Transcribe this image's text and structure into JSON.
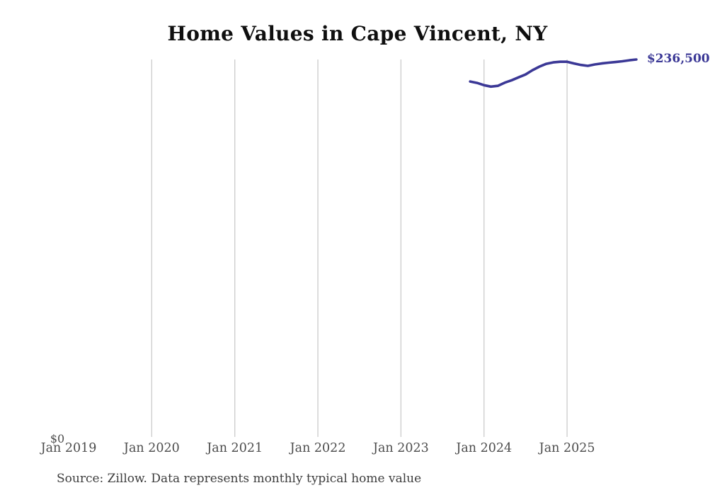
{
  "title": "Home Values in Cape Vincent, NY",
  "source": {
    "text": "Source: Zillow. Data represents monthly typical home value"
  },
  "y_axis": {
    "zero_label": "$0"
  },
  "end_label": {
    "text": "$236,500"
  },
  "colors": {
    "line": "#3b3896",
    "end_label": "#3b3896",
    "gridline": "#cbcbcb",
    "axis_label": "#4c4c4c",
    "title": "#0f0f0f",
    "source": "#3d3d3d",
    "background": "#ffffff"
  },
  "chart_data": {
    "type": "line",
    "title": "Home Values in Cape Vincent, NY",
    "series_name": "Monthly typical home value",
    "xlabel": "",
    "ylabel": "",
    "grid": "vertical-only",
    "legend": "none",
    "ylim": [
      0,
      236500
    ],
    "x_tick_labels": [
      "Jan 2019",
      "Jan 2020",
      "Jan 2021",
      "Jan 2022",
      "Jan 2023",
      "Jan 2024",
      "Jan 2025"
    ],
    "x_tick_month_offsets": [
      0,
      12,
      24,
      36,
      48,
      60,
      72
    ],
    "gridline_month_offsets": [
      12,
      24,
      36,
      48,
      60,
      72
    ],
    "x_start_month_offset": 58,
    "x": [
      "Nov 2023",
      "Dec 2023",
      "Jan 2024",
      "Feb 2024",
      "Mar 2024",
      "Apr 2024",
      "May 2024",
      "Jun 2024",
      "Jul 2024",
      "Aug 2024",
      "Sep 2024",
      "Oct 2024",
      "Nov 2024",
      "Dec 2024",
      "Jan 2025",
      "Feb 2025",
      "Mar 2025",
      "Apr 2025",
      "May 2025",
      "Jun 2025",
      "Jul 2025",
      "Aug 2025",
      "Sep 2025",
      "Oct 2025",
      "Nov 2025"
    ],
    "values": [
      222700,
      221800,
      220400,
      219500,
      220000,
      222000,
      223500,
      225300,
      227100,
      229800,
      232000,
      233800,
      234700,
      235100,
      235100,
      234000,
      233100,
      232500,
      233400,
      234000,
      234500,
      234900,
      235400,
      236000,
      236500
    ],
    "end_value_label": "$236,500",
    "y_zero_label": "$0"
  }
}
